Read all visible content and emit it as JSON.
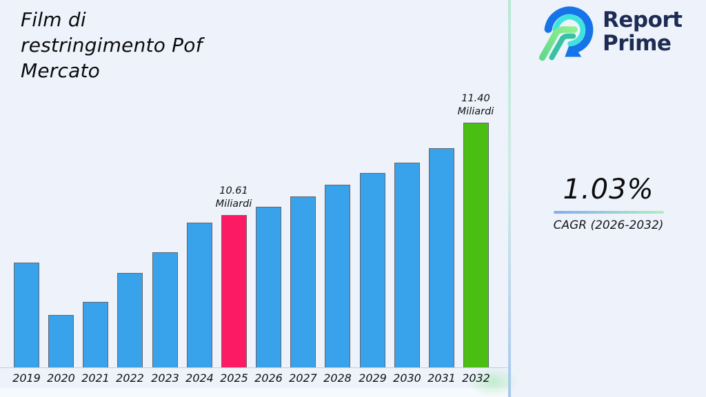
{
  "header": {
    "title": "Film di\nrestringimento Pof\nMercato"
  },
  "brand": {
    "name_line1": "Report",
    "name_line2": "Prime",
    "navy": "#1e2b52"
  },
  "stats": {
    "cagr_value": "1.03%",
    "cagr_label": "CAGR (2026-2032)"
  },
  "theme": {
    "background": "#edf2fb",
    "divider_top": "#b9e7d6",
    "divider_bottom": "#a9c6f1",
    "underline_blue": "#86abec",
    "underline_green": "#b2edbe",
    "axis_line": "#c9cdd2"
  },
  "chart_data": {
    "type": "bar",
    "title": "Film di restringimento Pof Mercato",
    "unit": "Miliardi",
    "categories": [
      "2019",
      "2020",
      "2021",
      "2022",
      "2023",
      "2024",
      "2025",
      "2026",
      "2027",
      "2028",
      "2029",
      "2030",
      "2031",
      "2032"
    ],
    "values": [
      10.2,
      9.75,
      9.86,
      10.11,
      10.29,
      10.54,
      10.61,
      10.68,
      10.77,
      10.87,
      10.97,
      11.06,
      11.18,
      11.4
    ],
    "annotations": [
      {
        "category": "2025",
        "text": "10.61\nMiliardi"
      },
      {
        "category": "2032",
        "text": "11.40\nMiliardi"
      }
    ],
    "colors": {
      "default": "#38a2ea",
      "2025": "#fc1a64",
      "2032": "#4abf11"
    },
    "ylim": [
      9.3,
      11.55
    ],
    "xlabel": "",
    "ylabel": "",
    "grid": false,
    "legend": false
  }
}
